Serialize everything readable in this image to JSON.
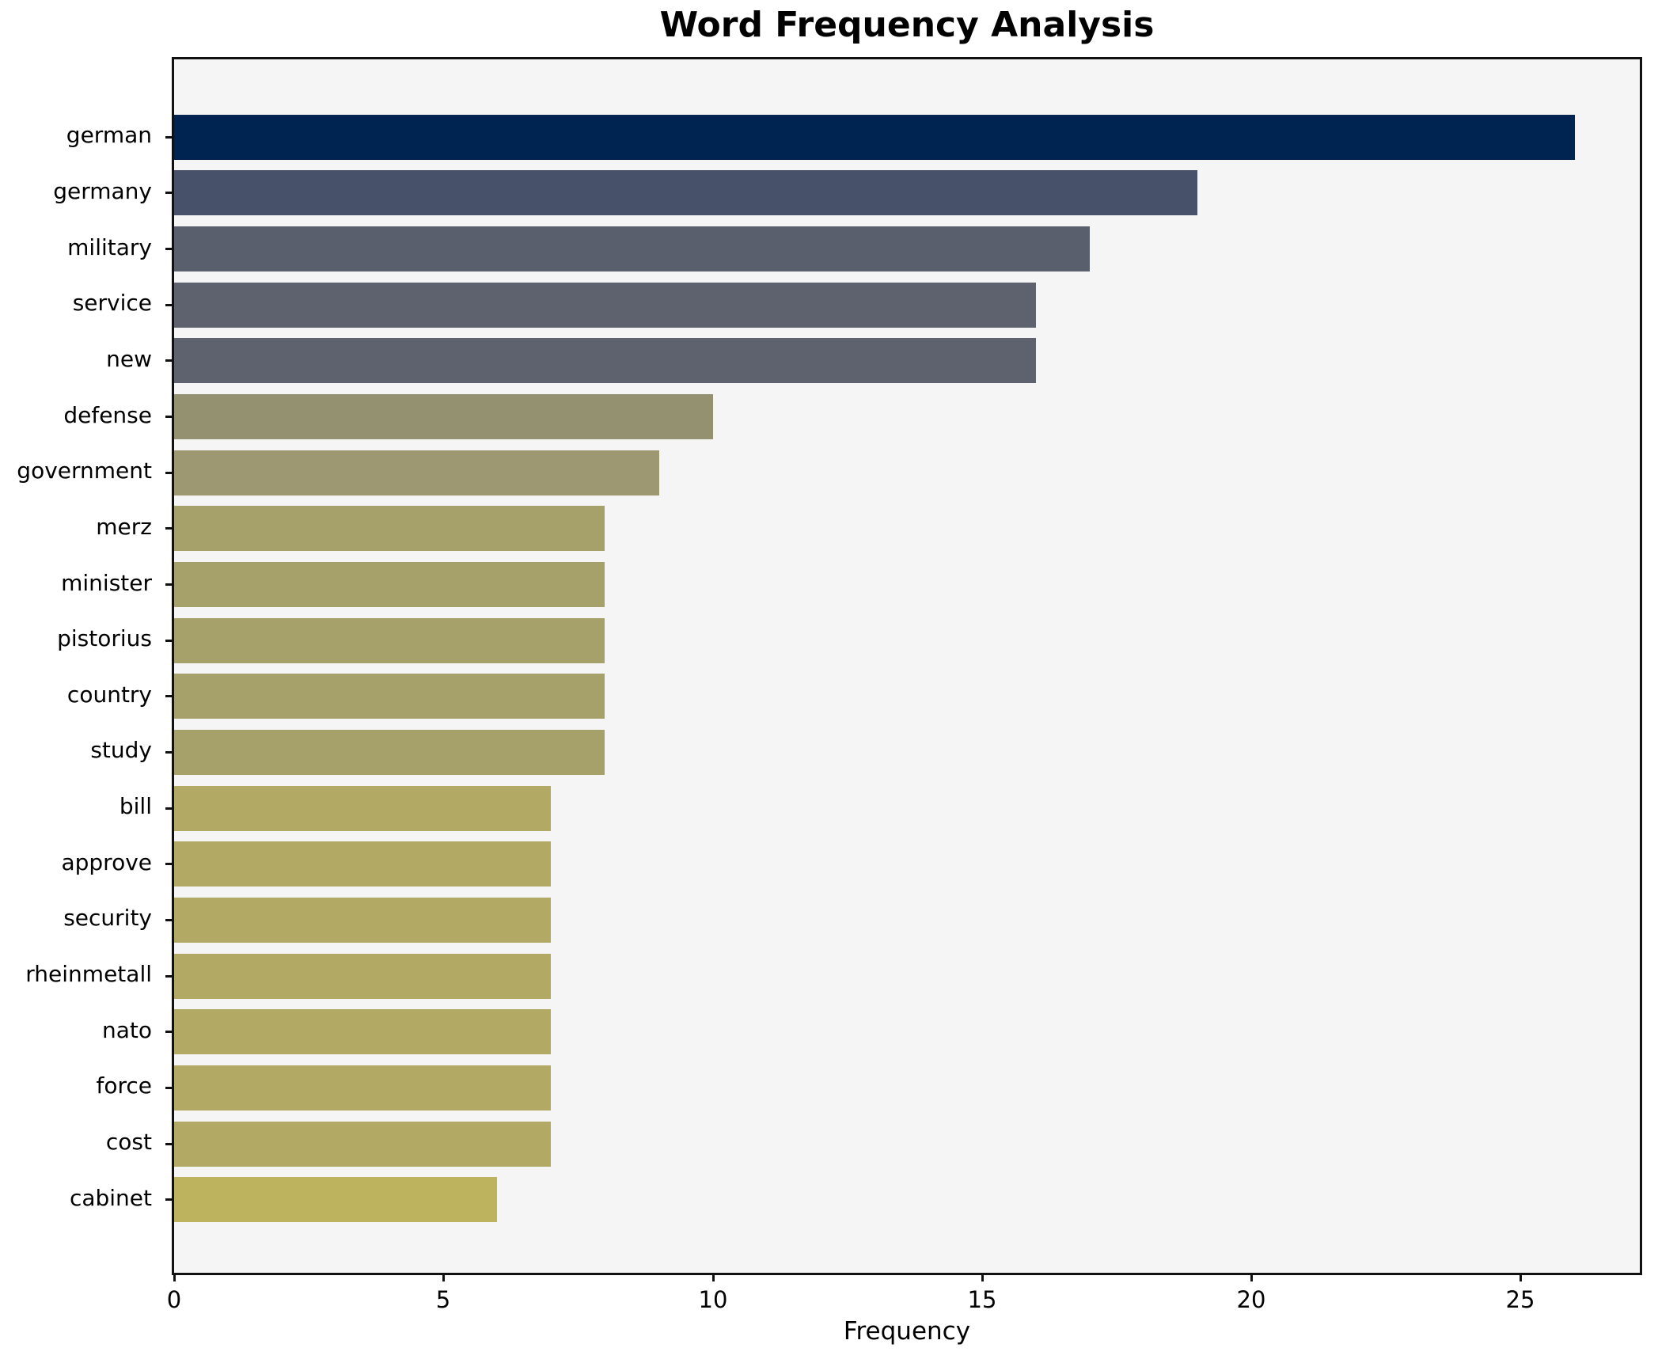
{
  "chart_data": {
    "type": "bar",
    "orientation": "horizontal",
    "title": "Word Frequency Analysis",
    "xlabel": "Frequency",
    "ylabel": "",
    "categories": [
      "german",
      "germany",
      "military",
      "service",
      "new",
      "defense",
      "government",
      "merz",
      "minister",
      "pistorius",
      "country",
      "study",
      "bill",
      "approve",
      "security",
      "rheinmetall",
      "nato",
      "force",
      "cost",
      "cabinet"
    ],
    "values": [
      26,
      19,
      17,
      16,
      16,
      10,
      9,
      8,
      8,
      8,
      8,
      8,
      7,
      7,
      7,
      7,
      7,
      7,
      7,
      6
    ],
    "bar_colors": [
      "#002452",
      "#475169",
      "#5a5f6d",
      "#5e626e",
      "#5e626e",
      "#949170",
      "#9d9871",
      "#a6a06b",
      "#a6a06b",
      "#a6a06b",
      "#a6a06b",
      "#a6a06b",
      "#b2aa64",
      "#b2aa64",
      "#b2aa64",
      "#b2aa64",
      "#b2aa64",
      "#b2aa64",
      "#b2aa64",
      "#bdb35e"
    ],
    "x_ticks": [
      0,
      5,
      10,
      15,
      20,
      25
    ],
    "xlim": [
      0,
      27.3
    ],
    "grid": false,
    "legend_position": "none",
    "plot_background": "#f5f5f6",
    "figure_background": "#ffffff",
    "spine_color": "#111111"
  }
}
